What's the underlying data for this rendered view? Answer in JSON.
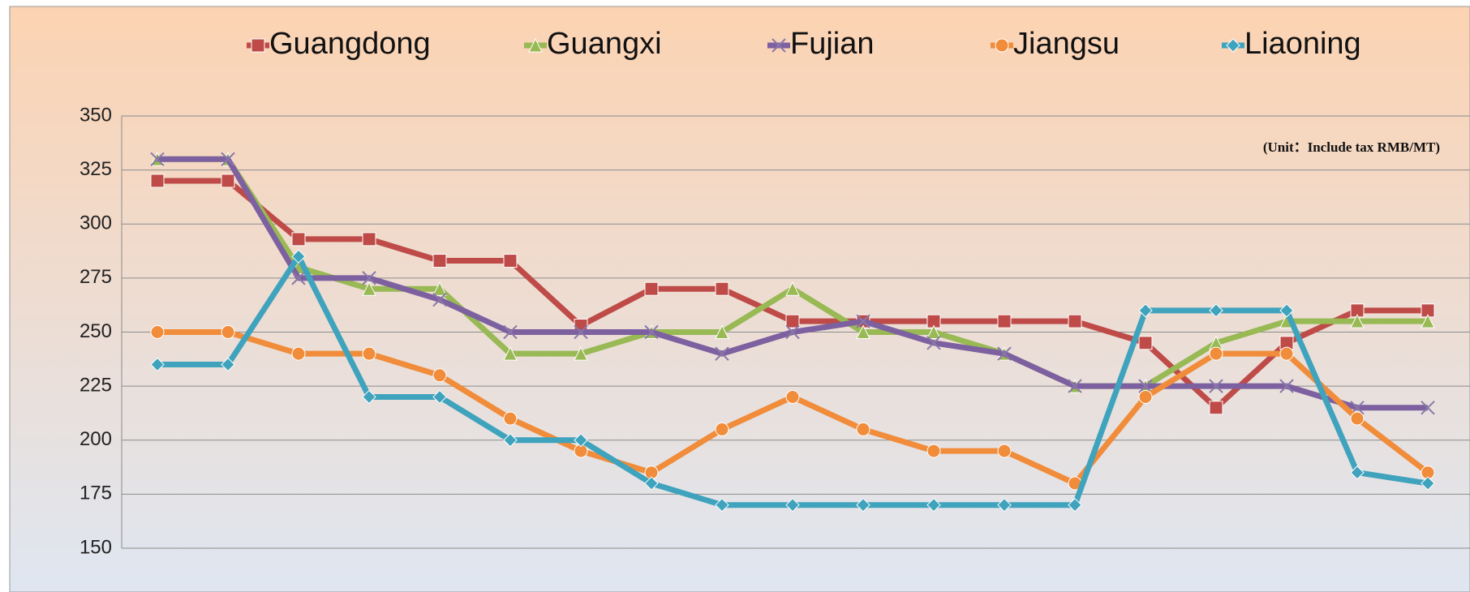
{
  "chart_data": {
    "type": "line",
    "annotation": "(Unit：Include tax RMB/MT)",
    "categories": [
      null,
      null,
      null,
      null,
      null,
      null,
      null,
      null,
      null,
      null,
      null,
      null,
      null,
      null,
      null,
      null,
      null,
      null,
      null
    ],
    "series": [
      {
        "name": "Guangdong",
        "color": "#be4b48",
        "marker": "square",
        "values": [
          320,
          320,
          293,
          293,
          283,
          283,
          253,
          270,
          270,
          255,
          255,
          255,
          255,
          255,
          245,
          215,
          245,
          260,
          260
        ]
      },
      {
        "name": "Guangxi",
        "color": "#98b954",
        "marker": "triangle",
        "values": [
          330,
          330,
          280,
          270,
          270,
          240,
          240,
          250,
          250,
          270,
          250,
          250,
          240,
          225,
          225,
          245,
          255,
          255,
          255
        ]
      },
      {
        "name": "Fujian",
        "color": "#7d60a0",
        "marker": "x",
        "values": [
          330,
          330,
          275,
          275,
          265,
          250,
          250,
          250,
          240,
          250,
          255,
          245,
          240,
          225,
          225,
          225,
          225,
          215,
          215
        ]
      },
      {
        "name": "Jiangsu",
        "color": "#f08c3a",
        "marker": "circle",
        "values": [
          250,
          250,
          240,
          240,
          230,
          210,
          195,
          185,
          205,
          220,
          205,
          195,
          195,
          180,
          220,
          240,
          240,
          210,
          185
        ]
      },
      {
        "name": "Liaoning",
        "color": "#3fa3bd",
        "marker": "diamond",
        "values": [
          235,
          235,
          285,
          220,
          220,
          200,
          200,
          180,
          170,
          170,
          170,
          170,
          170,
          170,
          260,
          260,
          260,
          185,
          180
        ]
      }
    ],
    "ylim": [
      150,
      350
    ],
    "yticks": [
      150,
      175,
      200,
      225,
      250,
      275,
      300,
      325,
      350
    ],
    "grid": true,
    "legend": "top"
  }
}
